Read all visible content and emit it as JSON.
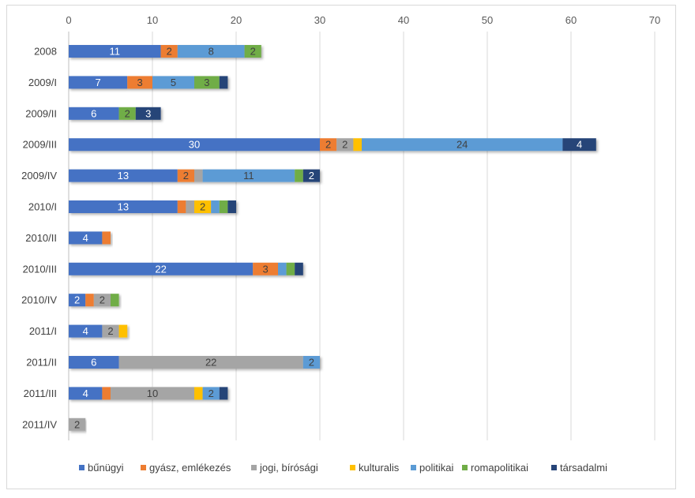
{
  "chart_data": {
    "type": "bar",
    "orientation": "horizontal",
    "stacked": true,
    "title": "",
    "xlabel": "",
    "ylabel": "",
    "xlim": [
      0,
      70
    ],
    "x_ticks": [
      0,
      10,
      20,
      30,
      40,
      50,
      60,
      70
    ],
    "grid": true,
    "legend_position": "bottom",
    "categories": [
      "2008",
      "2009/I",
      "2009/II",
      "2009/III",
      "2009/IV",
      "2010/I",
      "2010/II",
      "2010/III",
      "2010/IV",
      "2011/I",
      "2011/II",
      "2011/III",
      "2011/IV"
    ],
    "series": [
      {
        "name": "bűnügyi",
        "color": "#4472C4",
        "values": [
          11,
          7,
          6,
          30,
          13,
          13,
          4,
          22,
          2,
          4,
          6,
          4,
          0
        ]
      },
      {
        "name": "gyász, emlékezés",
        "color": "#ED7D31",
        "values": [
          2,
          3,
          0,
          2,
          2,
          1,
          1,
          3,
          1,
          0,
          0,
          1,
          0
        ]
      },
      {
        "name": "jogi, bírósági",
        "color": "#A5A5A5",
        "values": [
          0,
          0,
          0,
          2,
          1,
          1,
          0,
          0,
          2,
          2,
          22,
          10,
          2
        ]
      },
      {
        "name": "kulturalis",
        "color": "#FFC000",
        "values": [
          0,
          0,
          0,
          1,
          0,
          2,
          0,
          0,
          0,
          1,
          0,
          1,
          0
        ]
      },
      {
        "name": "politikai",
        "color": "#5B9BD5",
        "values": [
          8,
          5,
          0,
          24,
          11,
          1,
          0,
          1,
          0,
          0,
          2,
          2,
          0
        ]
      },
      {
        "name": "romapolitikai",
        "color": "#70AD47",
        "values": [
          2,
          3,
          2,
          0,
          1,
          1,
          0,
          1,
          1,
          0,
          0,
          0,
          0
        ]
      },
      {
        "name": "társadalmi",
        "color": "#264478",
        "values": [
          0,
          1,
          3,
          4,
          2,
          1,
          0,
          1,
          0,
          0,
          0,
          1,
          0
        ]
      }
    ],
    "data_labels_min_value": 2
  }
}
